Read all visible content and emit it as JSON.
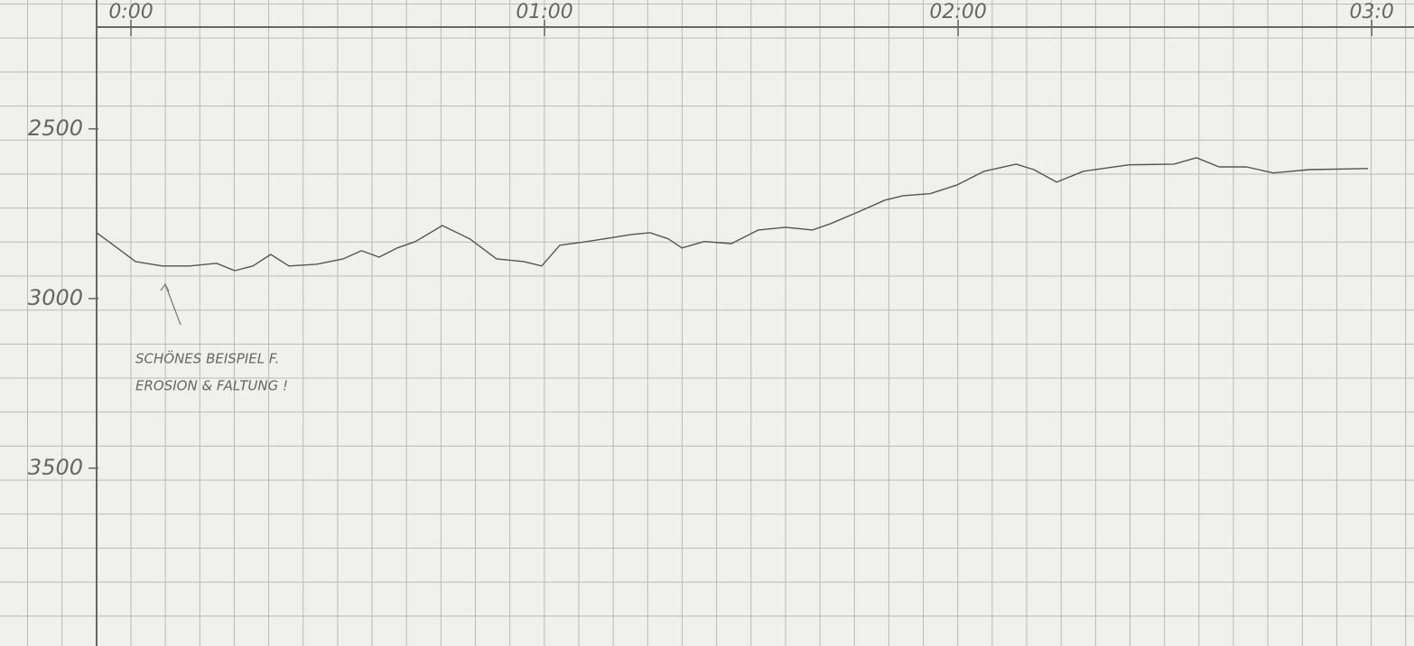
{
  "chart_data": {
    "type": "line",
    "xlim": [
      -0.083,
      3.1
    ],
    "xticks": [
      {
        "value": 0,
        "label": "0:00"
      },
      {
        "value": 1,
        "label": "01:00"
      },
      {
        "value": 2,
        "label": "02:00"
      },
      {
        "value": 3,
        "label": "03:0"
      }
    ],
    "ylim": [
      2200,
      4000
    ],
    "yticks": [
      2500,
      3000,
      3500
    ],
    "y_reversed": true,
    "grid": true,
    "series": [
      {
        "color": "#555555",
        "x": [
          -0.083,
          -0.033,
          0.011,
          0.076,
          0.142,
          0.207,
          0.251,
          0.295,
          0.338,
          0.382,
          0.448,
          0.513,
          0.557,
          0.6,
          0.644,
          0.688,
          0.753,
          0.819,
          0.884,
          0.95,
          0.993,
          1.037,
          1.103,
          1.212,
          1.255,
          1.299,
          1.332,
          1.386,
          1.452,
          1.517,
          1.583,
          1.648,
          1.692,
          1.758,
          1.823,
          1.867,
          1.932,
          1.998,
          2.063,
          2.14,
          2.183,
          2.238,
          2.303,
          2.413,
          2.522,
          2.576,
          2.631,
          2.697,
          2.762,
          2.849,
          2.991
        ],
        "values": [
          2806,
          2851,
          2891,
          2904,
          2904,
          2896,
          2918,
          2904,
          2870,
          2904,
          2899,
          2883,
          2859,
          2878,
          2851,
          2832,
          2785,
          2824,
          2883,
          2891,
          2904,
          2843,
          2832,
          2811,
          2806,
          2824,
          2851,
          2832,
          2838,
          2798,
          2790,
          2798,
          2779,
          2745,
          2710,
          2697,
          2691,
          2665,
          2625,
          2604,
          2620,
          2657,
          2625,
          2606,
          2604,
          2585,
          2612,
          2612,
          2630,
          2620,
          2617
        ]
      }
    ],
    "annotations": [
      "SCHÖNES BEISPIEL F.",
      "EROSION & FALTUNG !"
    ]
  }
}
